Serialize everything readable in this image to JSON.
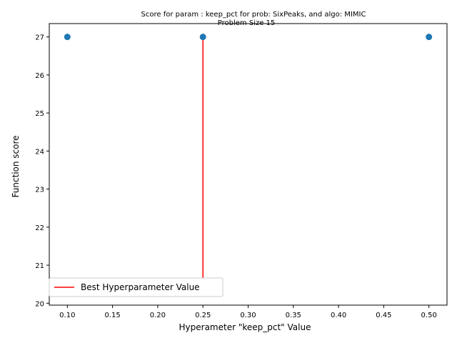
{
  "chart_data": {
    "type": "scatter",
    "title_line1": "Score for param : keep_pct for prob: SixPeaks, and algo: MIMIC",
    "title_line2": "Problem Size 15",
    "xlabel": "Hyperameter \"keep_pct\" Value",
    "ylabel": "Function score",
    "xlim": [
      0.08,
      0.52
    ],
    "ylim": [
      19.95,
      27.35
    ],
    "xticks": [
      0.1,
      0.15,
      0.2,
      0.25,
      0.3,
      0.35,
      0.4,
      0.45,
      0.5
    ],
    "xtick_labels": [
      "0.10",
      "0.15",
      "0.20",
      "0.25",
      "0.30",
      "0.35",
      "0.40",
      "0.45",
      "0.50"
    ],
    "yticks": [
      20,
      21,
      22,
      23,
      24,
      25,
      26,
      27
    ],
    "ytick_labels": [
      "20",
      "21",
      "22",
      "23",
      "24",
      "25",
      "26",
      "27"
    ],
    "grid": false,
    "legend_position": "lower-left",
    "points": {
      "x": [
        0.1,
        0.25,
        0.5
      ],
      "y": [
        27,
        27,
        27
      ],
      "color": "#1f77b4"
    },
    "best_line": {
      "x": 0.25,
      "y_from": 20.5,
      "y_to": 27,
      "label": "Best Hyperparameter Value",
      "color": "#ff0000"
    }
  }
}
